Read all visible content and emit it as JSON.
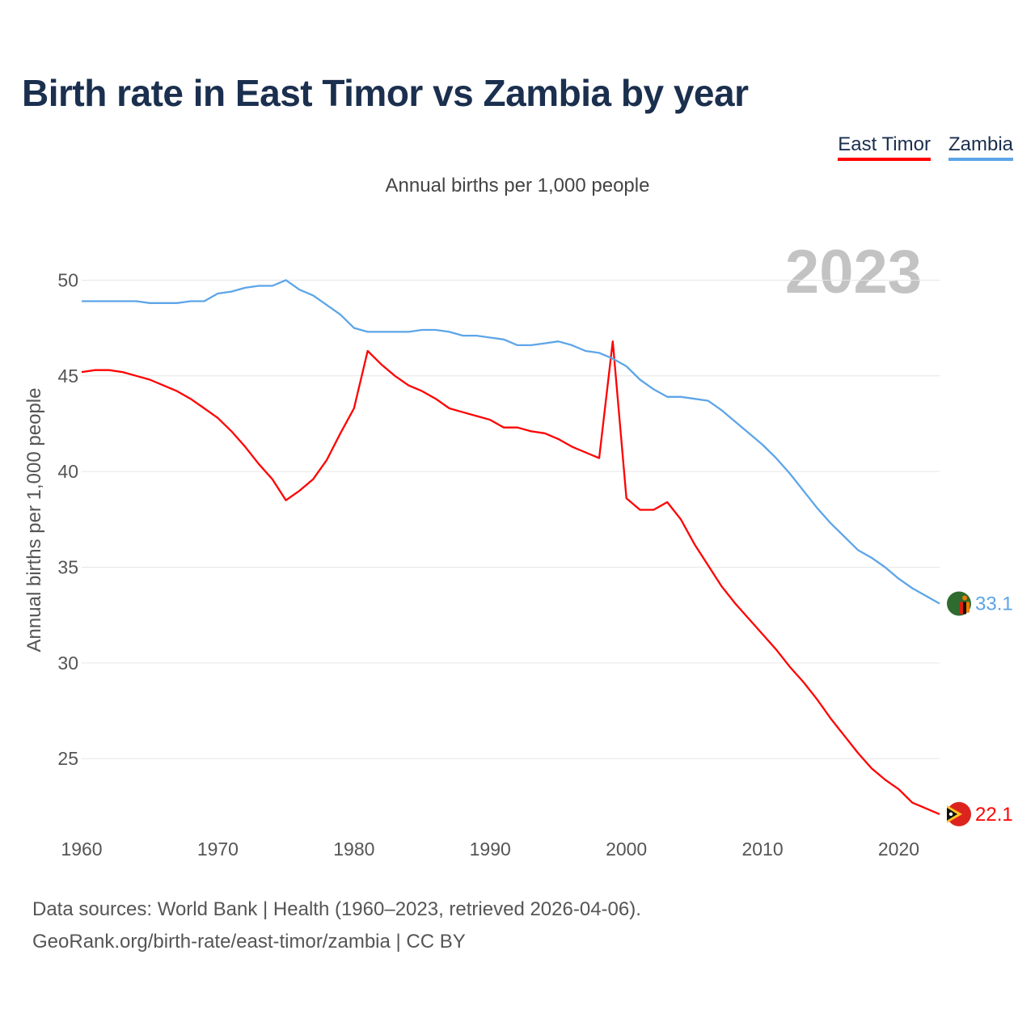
{
  "title": "Birth rate in East Timor vs Zambia by year",
  "subtitle": "Annual births per 1,000 people",
  "year_watermark": "2023",
  "footer": {
    "line1": "Data sources: World Bank | Health (1960–2023, retrieved 2026-04-06).",
    "line2": "GeoRank.org/birth-rate/east-timor/zambia | CC BY"
  },
  "legend": [
    {
      "name": "East Timor",
      "color": "#ff0000"
    },
    {
      "name": "Zambia",
      "color": "#5da5e8"
    }
  ],
  "chart_data": {
    "type": "line",
    "title": "Birth rate in East Timor vs Zambia by year",
    "xlabel": "",
    "ylabel": "Annual births per 1,000 people",
    "xlim": [
      1960,
      2023
    ],
    "ylim": [
      20.7,
      52.3
    ],
    "xticks": [
      1960,
      1970,
      1980,
      1990,
      2000,
      2010,
      2020
    ],
    "yticks": [
      25,
      30,
      35,
      40,
      45,
      50
    ],
    "grid": true,
    "legend_position": "top-right",
    "x": [
      1960,
      1961,
      1962,
      1963,
      1964,
      1965,
      1966,
      1967,
      1968,
      1969,
      1970,
      1971,
      1972,
      1973,
      1974,
      1975,
      1976,
      1977,
      1978,
      1979,
      1980,
      1981,
      1982,
      1983,
      1984,
      1985,
      1986,
      1987,
      1988,
      1989,
      1990,
      1991,
      1992,
      1993,
      1994,
      1995,
      1996,
      1997,
      1998,
      1999,
      2000,
      2001,
      2002,
      2003,
      2004,
      2005,
      2006,
      2007,
      2008,
      2009,
      2010,
      2011,
      2012,
      2013,
      2014,
      2015,
      2016,
      2017,
      2018,
      2019,
      2020,
      2021,
      2022,
      2023
    ],
    "series": [
      {
        "name": "East Timor",
        "color": "#ff0000",
        "end_label": "22.1",
        "values": [
          45.2,
          45.3,
          45.3,
          45.2,
          45.0,
          44.8,
          44.5,
          44.2,
          43.8,
          43.3,
          42.8,
          42.1,
          41.3,
          40.4,
          39.6,
          38.5,
          39.0,
          39.6,
          40.6,
          42.0,
          43.3,
          46.3,
          45.6,
          45.0,
          44.5,
          44.2,
          43.8,
          43.3,
          43.1,
          42.9,
          42.7,
          42.3,
          42.3,
          42.1,
          42.0,
          41.7,
          41.3,
          41.0,
          40.7,
          46.8,
          38.6,
          38.0,
          38.0,
          38.4,
          37.5,
          36.2,
          35.1,
          34.0,
          33.1,
          32.3,
          31.5,
          30.7,
          29.8,
          29.0,
          28.1,
          27.1,
          26.2,
          25.3,
          24.5,
          23.9,
          23.4,
          22.7,
          22.4,
          22.1
        ]
      },
      {
        "name": "Zambia",
        "color": "#5da5e8",
        "end_label": "33.1",
        "values": [
          48.9,
          48.9,
          48.9,
          48.9,
          48.9,
          48.8,
          48.8,
          48.8,
          48.9,
          48.9,
          49.3,
          49.4,
          49.6,
          49.7,
          49.7,
          50.0,
          49.5,
          49.2,
          48.7,
          48.2,
          47.5,
          47.3,
          47.3,
          47.3,
          47.3,
          47.4,
          47.4,
          47.3,
          47.1,
          47.1,
          47.0,
          46.9,
          46.6,
          46.6,
          46.7,
          46.8,
          46.6,
          46.3,
          46.2,
          45.9,
          45.5,
          44.8,
          44.3,
          43.9,
          43.9,
          43.8,
          43.7,
          43.2,
          42.6,
          42.0,
          41.4,
          40.7,
          39.9,
          39.0,
          38.1,
          37.3,
          36.6,
          35.9,
          35.5,
          35.0,
          34.4,
          33.9,
          33.5,
          33.1
        ]
      }
    ]
  }
}
